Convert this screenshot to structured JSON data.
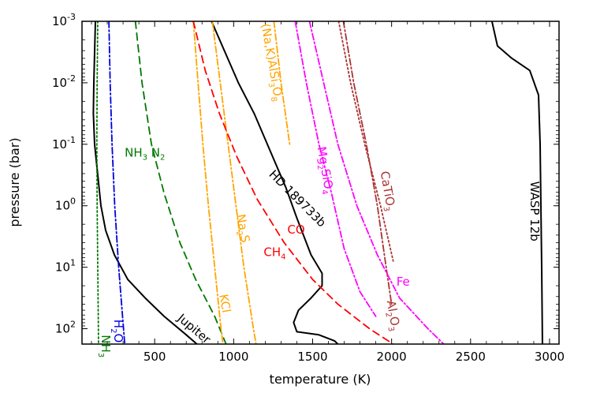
{
  "chart_data": {
    "type": "line",
    "title": "",
    "xlabel": "temperature (K)",
    "ylabel": "pressure (bar)",
    "xlim": [
      40,
      3060
    ],
    "ylim_log10": [
      -3,
      2.25
    ],
    "x_ticks": [
      {
        "value": 500,
        "label": "500"
      },
      {
        "value": 1000,
        "label": "1000"
      },
      {
        "value": 1500,
        "label": "1500"
      },
      {
        "value": 2000,
        "label": "2000"
      },
      {
        "value": 2500,
        "label": "2500"
      },
      {
        "value": 3000,
        "label": "3000"
      }
    ],
    "y_ticks": [
      {
        "exp": -3,
        "base": "10",
        "sup": "-3"
      },
      {
        "exp": -2,
        "base": "10",
        "sup": "-2"
      },
      {
        "exp": -1,
        "base": "10",
        "sup": "-1"
      },
      {
        "exp": 0,
        "base": "10",
        "sup": "0"
      },
      {
        "exp": 1,
        "base": "10",
        "sup": "1"
      },
      {
        "exp": 2,
        "base": "10",
        "sup": "2"
      }
    ],
    "series": [
      {
        "name": "Jupiter",
        "kind": "profile",
        "color": "#000000",
        "style": "solid",
        "points": [
          [
            125,
            -3
          ],
          [
            120,
            -2.5
          ],
          [
            115,
            -2
          ],
          [
            112,
            -1.5
          ],
          [
            120,
            -1
          ],
          [
            140,
            -0.5
          ],
          [
            160,
            0
          ],
          [
            190,
            0.4
          ],
          [
            245,
            0.8
          ],
          [
            330,
            1.2
          ],
          [
            440,
            1.5
          ],
          [
            560,
            1.8
          ],
          [
            700,
            2.1
          ],
          [
            790,
            2.3
          ]
        ]
      },
      {
        "name": "HD 189733b",
        "kind": "profile",
        "color": "#000000",
        "style": "solid",
        "points": [
          [
            860,
            -3
          ],
          [
            1030,
            -2
          ],
          [
            1130,
            -1.5
          ],
          [
            1230,
            -0.9
          ],
          [
            1330,
            -0.3
          ],
          [
            1400,
            0.2
          ],
          [
            1490,
            0.8
          ],
          [
            1560,
            1.1
          ],
          [
            1560,
            1.3
          ],
          [
            1490,
            1.5
          ],
          [
            1410,
            1.7
          ],
          [
            1380,
            1.9
          ],
          [
            1400,
            2.05
          ],
          [
            1540,
            2.1
          ],
          [
            1640,
            2.2
          ],
          [
            1680,
            2.3
          ]
        ]
      },
      {
        "name": "WASP 12b",
        "kind": "profile",
        "color": "#000000",
        "style": "solid",
        "points": [
          [
            2635,
            -3
          ],
          [
            2670,
            -2.6
          ],
          [
            2760,
            -2.4
          ],
          [
            2875,
            -2.2
          ],
          [
            2930,
            -1.8
          ],
          [
            2940,
            -1
          ],
          [
            2945,
            0
          ],
          [
            2950,
            1
          ],
          [
            2955,
            2.3
          ]
        ]
      },
      {
        "name": "NH3",
        "kind": "condensation",
        "color": "#007700",
        "style": "dotted",
        "points": [
          [
            140,
            -3
          ],
          [
            136,
            -2
          ],
          [
            134,
            -1
          ],
          [
            136,
            0
          ],
          [
            140,
            1
          ],
          [
            145,
            2.3
          ]
        ]
      },
      {
        "name": "H2O",
        "kind": "condensation",
        "color": "#0000dd",
        "style": "dashdot",
        "points": [
          [
            210,
            -3
          ],
          [
            218,
            -2
          ],
          [
            230,
            -1
          ],
          [
            247,
            0
          ],
          [
            272,
            1
          ],
          [
            312,
            2.3
          ]
        ]
      },
      {
        "name": "NH3 N2",
        "kind": "equal-abundance",
        "color": "#007700",
        "style": "dashed",
        "points": [
          [
            378,
            -3
          ],
          [
            420,
            -2
          ],
          [
            480,
            -1
          ],
          [
            560,
            -0.2
          ],
          [
            660,
            0.6
          ],
          [
            760,
            1.2
          ],
          [
            880,
            1.8
          ],
          [
            960,
            2.3
          ]
        ]
      },
      {
        "name": "KCl",
        "kind": "condensation",
        "color": "#ffa500",
        "style": "dashdot",
        "points": [
          [
            745,
            -3
          ],
          [
            775,
            -2
          ],
          [
            805,
            -1
          ],
          [
            840,
            0
          ],
          [
            880,
            1
          ],
          [
            920,
            2
          ],
          [
            935,
            2.3
          ]
        ]
      },
      {
        "name": "Na2S",
        "kind": "condensation",
        "color": "#ffa500",
        "style": "dashdot",
        "points": [
          [
            865,
            -3
          ],
          [
            915,
            -2
          ],
          [
            965,
            -1
          ],
          [
            1015,
            0
          ],
          [
            1065,
            1
          ],
          [
            1125,
            2
          ],
          [
            1145,
            2.3
          ]
        ]
      },
      {
        "name": "CH4 CO",
        "kind": "equal-abundance",
        "color": "#ff0000",
        "style": "dashed",
        "points": [
          [
            745,
            -3
          ],
          [
            820,
            -2.2
          ],
          [
            910,
            -1.5
          ],
          [
            1020,
            -0.8
          ],
          [
            1150,
            -0.1
          ],
          [
            1320,
            0.6
          ],
          [
            1500,
            1.2
          ],
          [
            1660,
            1.6
          ],
          [
            1860,
            2
          ],
          [
            2040,
            2.3
          ]
        ]
      },
      {
        "name": "(Na,K)AlSi3O8",
        "kind": "condensation",
        "color": "#ffa500",
        "style": "dashdot",
        "points": [
          [
            1255,
            -3
          ],
          [
            1300,
            -2
          ],
          [
            1355,
            -1
          ]
        ]
      },
      {
        "name": "Mg2SiO4",
        "kind": "condensation",
        "color": "#ff00ff",
        "style": "dashdot",
        "points": [
          [
            1390,
            -3
          ],
          [
            1460,
            -2
          ],
          [
            1540,
            -1
          ],
          [
            1620,
            -0.2
          ],
          [
            1700,
            0.7
          ],
          [
            1800,
            1.4
          ],
          [
            1900,
            1.8
          ]
        ]
      },
      {
        "name": "CaTiO3",
        "kind": "condensation",
        "color": "#aa3333",
        "style": "dotted",
        "points": [
          [
            1665,
            -3
          ],
          [
            1740,
            -2
          ],
          [
            1830,
            -1
          ],
          [
            1930,
            0
          ],
          [
            2010,
            0.9
          ]
        ]
      },
      {
        "name": "Al2O3",
        "kind": "condensation",
        "color": "#aa3333",
        "style": "dashdot",
        "points": [
          [
            1695,
            -3
          ],
          [
            1760,
            -2
          ],
          [
            1840,
            -1
          ],
          [
            1910,
            0
          ],
          [
            1960,
            0.9
          ],
          [
            2000,
            1.6
          ]
        ]
      },
      {
        "name": "Fe",
        "kind": "condensation",
        "color": "#ff00ff",
        "style": "dashdot",
        "points": [
          [
            1480,
            -3
          ],
          [
            1570,
            -2
          ],
          [
            1660,
            -1
          ],
          [
            1780,
            0
          ],
          [
            1910,
            0.8
          ],
          [
            2050,
            1.5
          ],
          [
            2230,
            2
          ],
          [
            2350,
            2.3
          ]
        ]
      }
    ],
    "annotations": [
      {
        "id": "jupiter",
        "text": "Jupiter",
        "color": "#000000",
        "at": [
          640,
          1.85
        ],
        "rotate": 40
      },
      {
        "id": "hd",
        "text": "HD 189733b",
        "color": "#000000",
        "at": [
          1220,
          -0.5
        ],
        "rotate": 45
      },
      {
        "id": "wasp",
        "text": "WASP 12b",
        "color": "#000000",
        "at": [
          2880,
          -0.4
        ],
        "rotate": 90
      },
      {
        "id": "nh3cond",
        "chem": [
          [
            "NH",
            false
          ],
          [
            "3",
            true
          ]
        ],
        "color": "#007700",
        "at": [
          165,
          2.1
        ],
        "rotate": 90
      },
      {
        "id": "h2o",
        "chem": [
          [
            "H",
            false
          ],
          [
            "2",
            true
          ],
          [
            "O",
            false
          ]
        ],
        "color": "#0000dd",
        "at": [
          245,
          1.85
        ],
        "rotate": 90
      },
      {
        "id": "nh3n2",
        "chem": [
          [
            "NH",
            false
          ],
          [
            "3",
            true
          ],
          [
            " N",
            false
          ],
          [
            "2",
            true
          ]
        ],
        "color": "#007700",
        "at": [
          310,
          -0.8
        ],
        "rotate": 0
      },
      {
        "id": "kcl",
        "text": "KCl",
        "color": "#ffa500",
        "at": [
          910,
          1.45
        ],
        "rotate": 80
      },
      {
        "id": "na2s",
        "chem": [
          [
            "Na",
            false
          ],
          [
            "2",
            true
          ],
          [
            "S",
            false
          ]
        ],
        "color": "#ffa500",
        "at": [
          1020,
          0.15
        ],
        "rotate": 80
      },
      {
        "id": "co",
        "text": "CO",
        "color": "#ff0000",
        "at": [
          1340,
          0.45
        ],
        "rotate": 0
      },
      {
        "id": "ch4",
        "chem": [
          [
            "CH",
            false
          ],
          [
            "4",
            true
          ]
        ],
        "color": "#ff0000",
        "at": [
          1190,
          0.82
        ],
        "rotate": 0
      },
      {
        "id": "nakal",
        "chem": [
          [
            "(Na,K)AlSi",
            false
          ],
          [
            "3",
            true
          ],
          [
            "O",
            false
          ],
          [
            "8",
            true
          ]
        ],
        "color": "#ffa500",
        "at": [
          1175,
          -2.95
        ],
        "rotate": 80
      },
      {
        "id": "mg2sio4",
        "chem": [
          [
            "Mg",
            false
          ],
          [
            "2",
            true
          ],
          [
            "SiO",
            false
          ],
          [
            "4",
            true
          ]
        ],
        "color": "#ff00ff",
        "at": [
          1530,
          -0.95
        ],
        "rotate": 80
      },
      {
        "id": "catio3",
        "chem": [
          [
            "CaTiO",
            false
          ],
          [
            "3",
            true
          ]
        ],
        "color": "#aa3333",
        "at": [
          1930,
          -0.55
        ],
        "rotate": 80
      },
      {
        "id": "fe",
        "text": "Fe",
        "color": "#ff00ff",
        "at": [
          2030,
          1.3
        ],
        "rotate": 0
      },
      {
        "id": "al2o3",
        "chem": [
          [
            "Al",
            false
          ],
          [
            "2",
            true
          ],
          [
            "O",
            false
          ],
          [
            "3",
            true
          ]
        ],
        "color": "#aa3333",
        "at": [
          1970,
          1.55
        ],
        "rotate": 80
      }
    ]
  }
}
